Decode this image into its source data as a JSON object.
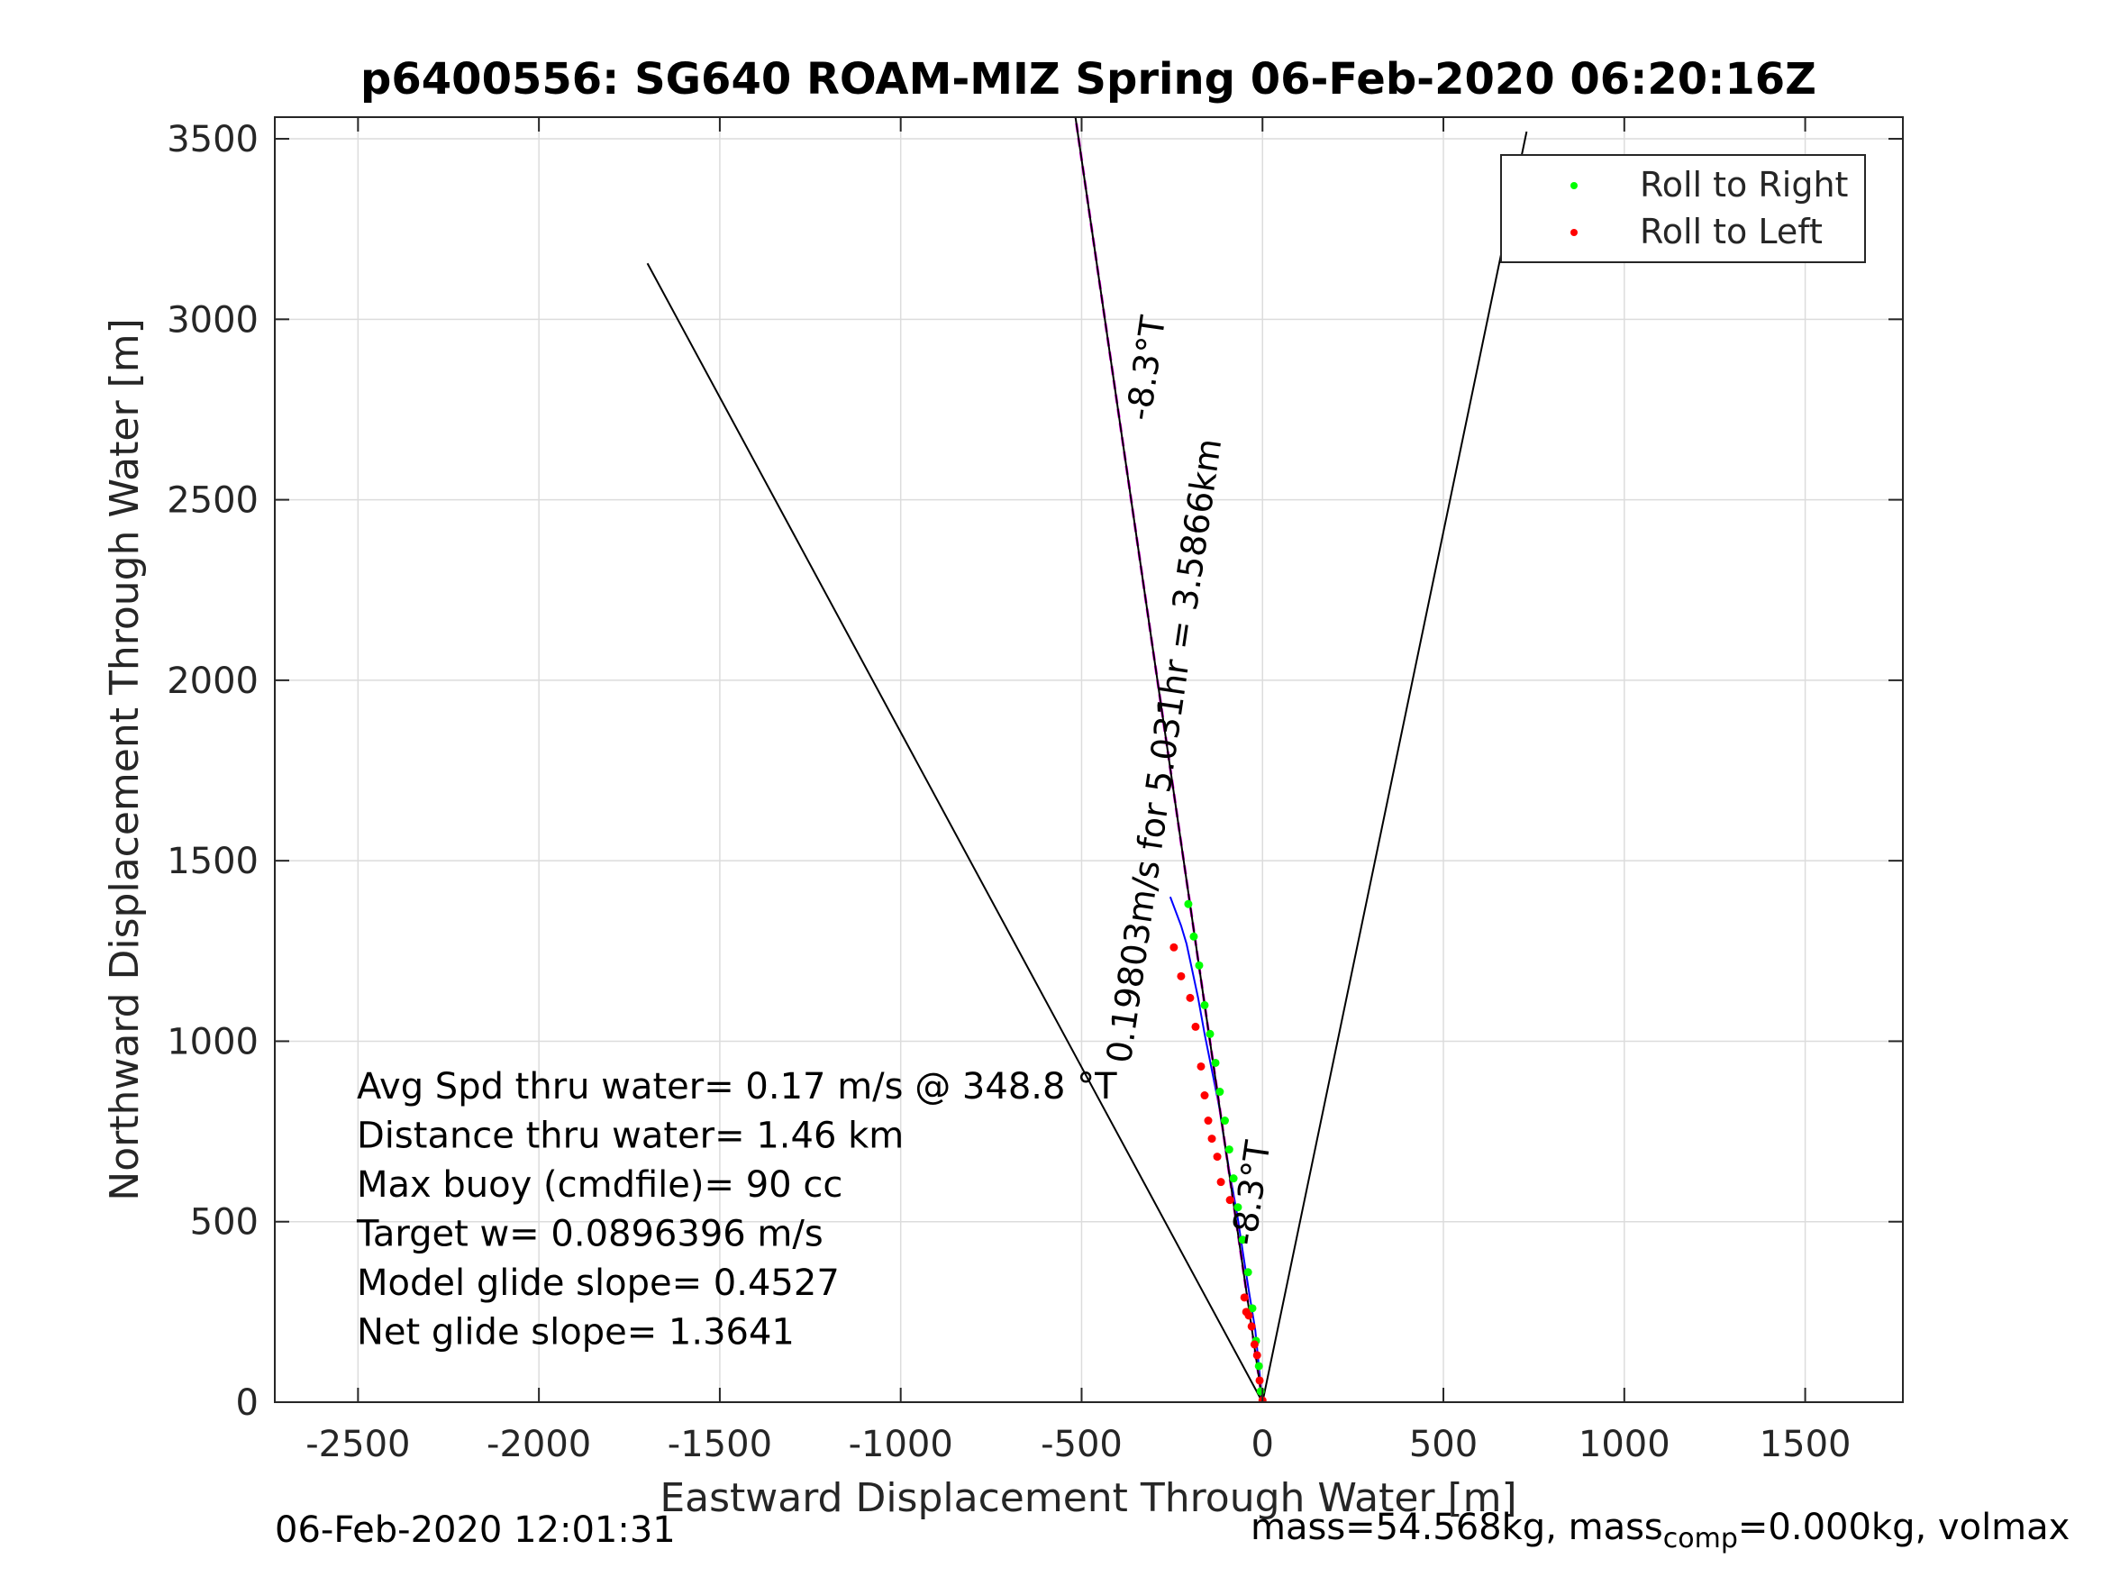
{
  "chart_data": {
    "type": "line",
    "title": "p6400556: SG640 ROAM-MIZ Spring 06-Feb-2020 06:20:16Z",
    "xlabel": "Eastward Displacement Through Water [m]",
    "ylabel": "Northward Displacement Through Water [m]",
    "xlim": [
      -2730,
      1770
    ],
    "ylim": [
      0,
      3560
    ],
    "xticks": [
      -2500,
      -2000,
      -1500,
      -1000,
      -500,
      0,
      500,
      1000,
      1500
    ],
    "yticks": [
      0,
      500,
      1000,
      1500,
      2000,
      2500,
      3000,
      3500
    ],
    "grid": true,
    "legend_placement": "top-right",
    "legend": [
      {
        "label": "Roll to Right",
        "color": "#00ff00"
      },
      {
        "label": "Roll to Left",
        "color": "#ff0000"
      }
    ],
    "series": [
      {
        "name": "Roll to Right",
        "color": "#00ff00",
        "marker": "dot",
        "x": [
          -5,
          -10,
          -18,
          -28,
          -40,
          -55,
          -68,
          -80,
          -92,
          -104,
          -118,
          -130,
          -145,
          -160,
          -175,
          -190,
          -205
        ],
        "y": [
          30,
          100,
          170,
          260,
          360,
          450,
          540,
          620,
          700,
          780,
          860,
          940,
          1020,
          1100,
          1210,
          1290,
          1380
        ]
      },
      {
        "name": "Roll to Left",
        "color": "#ff0000",
        "marker": "dot",
        "x": [
          0,
          -8,
          -15,
          -22,
          -30,
          -38,
          -45,
          -50,
          -90,
          -115,
          -125,
          -140,
          -150,
          -160,
          -170,
          -185,
          -200,
          -225,
          -245
        ],
        "y": [
          5,
          60,
          130,
          160,
          210,
          240,
          250,
          290,
          560,
          610,
          680,
          730,
          780,
          850,
          930,
          1040,
          1120,
          1180,
          1260
        ]
      },
      {
        "name": "",
        "color": "#0000ff",
        "style": "track",
        "x": [
          0,
          -10,
          -20,
          -38,
          -55,
          -70,
          -88,
          -105,
          -120,
          -140,
          -160,
          -178,
          -195,
          -210,
          -225,
          -240,
          -255
        ],
        "y": [
          0,
          100,
          200,
          310,
          420,
          520,
          620,
          720,
          820,
          920,
          1020,
          1120,
          1200,
          1270,
          1320,
          1360,
          1400
        ]
      },
      {
        "name": "",
        "color": "#ff00ff",
        "style": "dashed",
        "x": [
          0,
          -517
        ],
        "y": [
          0,
          3560
        ]
      },
      {
        "name": "",
        "color": "#000000",
        "style": "solid",
        "x": [
          0,
          -517
        ],
        "y": [
          0,
          3560
        ]
      },
      {
        "name": "",
        "color": "#000000",
        "style": "solid",
        "x": [
          0,
          -1700
        ],
        "y": [
          0,
          3155
        ]
      },
      {
        "name": "",
        "color": "#000000",
        "style": "solid",
        "x": [
          0,
          730
        ],
        "y": [
          0,
          3520
        ]
      }
    ],
    "annotations": [
      {
        "text": "-8.3°T",
        "x": -290,
        "y": 2860,
        "rotation": -81.7
      },
      {
        "text": "0.19803m/s for 5.031hr = 3.5866km",
        "x": -240,
        "y": 1800,
        "rotation": -81.7
      },
      {
        "text": "-8.3°T",
        "x": 0,
        "y": 575,
        "rotation": -81.7
      }
    ],
    "info_lines": [
      "Avg Spd thru water=  0.17 m/s @ 348.8 °T",
      "Distance thru water=  1.46 km",
      "Max buoy (cmdfile)= 90 cc",
      "Target w= 0.0896396 m/s",
      "Model glide slope= 0.4527",
      "Net glide slope= 1.3641"
    ]
  },
  "footer": {
    "date": "06-Feb-2020 12:01:31",
    "mass_pre": "mass=54.568kg, mass",
    "mass_sub": "comp",
    "mass_post": "=0.000kg, volmax"
  }
}
